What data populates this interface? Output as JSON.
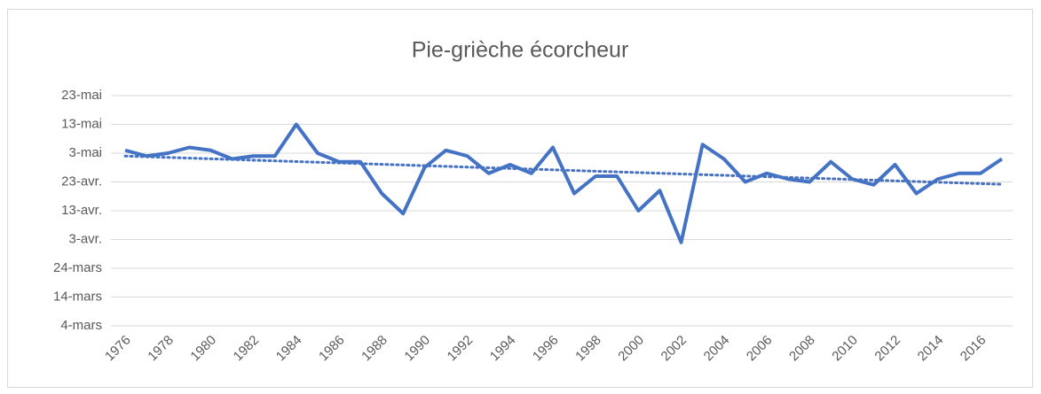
{
  "chart_data": {
    "type": "line",
    "title": "Pie-grièche écorcheur",
    "categories": [
      "1976",
      null,
      "1978",
      null,
      "1980",
      null,
      "1982",
      null,
      "1984",
      null,
      "1986",
      null,
      "1988",
      null,
      "1990",
      null,
      "1992",
      null,
      "1994",
      null,
      "1996",
      null,
      "1998",
      null,
      "2000",
      null,
      "2002",
      null,
      "2004",
      null,
      "2006",
      null,
      "2008",
      null,
      "2010",
      null,
      "2012",
      null,
      "2014",
      null,
      "2016",
      null
    ],
    "series": [
      {
        "color": "#4472c4",
        "values": [
          124,
          122,
          123,
          125,
          124,
          121,
          122,
          122,
          133,
          123,
          120,
          120,
          109,
          102,
          118,
          124,
          122,
          116,
          119,
          116,
          125,
          109,
          115,
          115,
          103,
          110,
          92,
          126,
          121,
          113,
          116,
          114,
          113,
          120,
          114,
          112,
          119,
          109,
          114,
          116,
          116,
          121
        ]
      }
    ],
    "trendline": true,
    "ylim": [
      63,
      143
    ],
    "yticks": [
      {
        "value": 63,
        "label": "4-mars"
      },
      {
        "value": 73,
        "label": "14-mars"
      },
      {
        "value": 83,
        "label": "24-mars"
      },
      {
        "value": 93,
        "label": "3-avr."
      },
      {
        "value": 103,
        "label": "13-avr."
      },
      {
        "value": 113,
        "label": "23-avr."
      },
      {
        "value": 123,
        "label": "3-mai"
      },
      {
        "value": 133,
        "label": "13-mai"
      },
      {
        "value": 143,
        "label": "23-mai"
      }
    ],
    "grid": true
  }
}
